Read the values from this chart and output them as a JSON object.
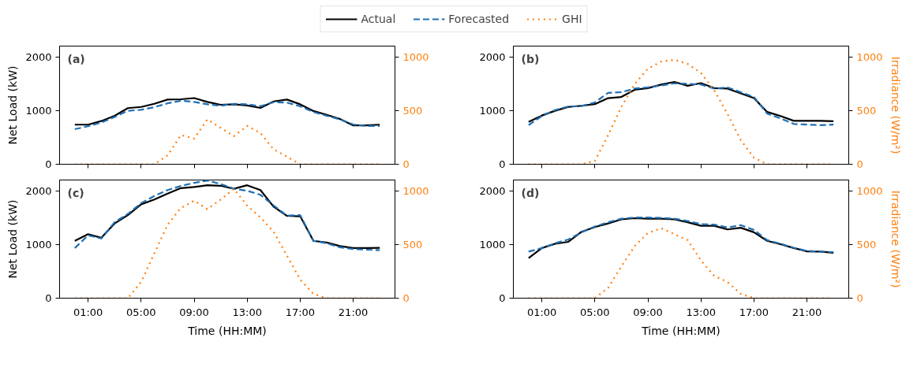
{
  "chart_data": [
    {
      "type": "line",
      "annotations": [
        "(a)"
      ],
      "ylabel": "Net Load (kW)",
      "legend": "top",
      "tick_labels": "y",
      "x": [
        0,
        1,
        2,
        3,
        4,
        5,
        6,
        7,
        8,
        9,
        10,
        11,
        12,
        13,
        14,
        15,
        16,
        17,
        18,
        19,
        20,
        21,
        22,
        23
      ],
      "xlim": [
        -1.15,
        24.15
      ],
      "xticks": [
        {
          "value": 1,
          "label": null
        },
        {
          "value": 5,
          "label": null
        },
        {
          "value": 9,
          "label": null
        },
        {
          "value": 13,
          "label": null
        },
        {
          "value": 17,
          "label": null
        },
        {
          "value": 21,
          "label": null
        }
      ],
      "ylim": [
        0,
        2200
      ],
      "yticks": [
        0,
        1000,
        2000
      ],
      "y2lim": [
        0,
        1100
      ],
      "y2ticks": [
        0,
        500,
        1000
      ],
      "grid": false,
      "series": [
        {
          "name": "Actual",
          "color": "#000000",
          "line_style": "solid",
          "values": [
            737,
            737,
            804,
            902,
            1045,
            1067,
            1125,
            1205,
            1210,
            1232,
            1161,
            1107,
            1116,
            1094,
            1049,
            1170,
            1205,
            1116,
            991,
            920,
            844,
            723,
            723,
            737
          ]
        },
        {
          "name": "Forecasted",
          "color": "#1f6fb4",
          "line_style": "dashed",
          "values": [
            652,
            710,
            777,
            880,
            996,
            1013,
            1063,
            1134,
            1183,
            1161,
            1116,
            1089,
            1125,
            1116,
            1080,
            1156,
            1147,
            1080,
            973,
            902,
            835,
            741,
            714,
            714
          ]
        },
        {
          "name": "GHI",
          "color": "#ff7f0e",
          "line_style": "dotted",
          "axis": "y2",
          "values": [
            0,
            0,
            0,
            0,
            0,
            0,
            0,
            83,
            272,
            239,
            417,
            339,
            261,
            357,
            290,
            138,
            71,
            0,
            0,
            0,
            0,
            0,
            0,
            0
          ]
        }
      ]
    },
    {
      "type": "line",
      "annotations": [
        "(b)"
      ],
      "y2label": "Irradiance (W/m²)",
      "tick_labels": "y",
      "x": [
        0,
        1,
        2,
        3,
        4,
        5,
        6,
        7,
        8,
        9,
        10,
        11,
        12,
        13,
        14,
        15,
        16,
        17,
        18,
        19,
        20,
        21,
        22,
        23
      ],
      "xlim": [
        -1.15,
        24.15
      ],
      "xticks": [
        {
          "value": 1,
          "label": null
        },
        {
          "value": 5,
          "label": null
        },
        {
          "value": 9,
          "label": null
        },
        {
          "value": 13,
          "label": null
        },
        {
          "value": 17,
          "label": null
        },
        {
          "value": 21,
          "label": null
        }
      ],
      "ylim": [
        0,
        2200
      ],
      "yticks": [
        0,
        1000,
        2000
      ],
      "y2lim": [
        0,
        1100
      ],
      "y2ticks": [
        0,
        500,
        1000
      ],
      "grid": false,
      "series": [
        {
          "color": "#000000",
          "line_style": "solid",
          "values": [
            787,
            907,
            996,
            1067,
            1089,
            1120,
            1231,
            1253,
            1387,
            1418,
            1484,
            1533,
            1462,
            1511,
            1418,
            1409,
            1320,
            1231,
            973,
            898,
            809,
            809,
            809,
            800
          ]
        },
        {
          "color": "#1f6fb4",
          "line_style": "dashed",
          "values": [
            729,
            898,
            1009,
            1076,
            1084,
            1151,
            1329,
            1342,
            1409,
            1431,
            1467,
            1507,
            1498,
            1484,
            1409,
            1431,
            1342,
            1253,
            942,
            853,
            751,
            738,
            729,
            738
          ]
        },
        {
          "color": "#ff7f0e",
          "line_style": "dotted",
          "axis": "y2",
          "values": [
            0,
            0,
            0,
            0,
            0,
            31,
            270,
            535,
            746,
            889,
            956,
            973,
            934,
            850,
            690,
            469,
            226,
            60,
            0,
            0,
            0,
            0,
            0,
            0
          ]
        }
      ]
    },
    {
      "type": "line",
      "annotations": [
        "(c)"
      ],
      "ylabel": "Net Load (kW)",
      "xlabel": "Time (HH:MM)",
      "x": [
        0,
        1,
        2,
        3,
        4,
        5,
        6,
        7,
        8,
        9,
        10,
        11,
        12,
        13,
        14,
        15,
        16,
        17,
        18,
        19,
        20,
        21,
        22,
        23
      ],
      "xlim": [
        -1.15,
        24.15
      ],
      "xticks": [
        {
          "value": 1,
          "label": "01:00"
        },
        {
          "value": 5,
          "label": "05:00"
        },
        {
          "value": 9,
          "label": "09:00"
        },
        {
          "value": 13,
          "label": "13:00"
        },
        {
          "value": 17,
          "label": "17:00"
        },
        {
          "value": 21,
          "label": "21:00"
        }
      ],
      "ylim": [
        0,
        2200
      ],
      "yticks": [
        0,
        1000,
        2000
      ],
      "y2lim": [
        0,
        1100
      ],
      "y2ticks": [
        0,
        500,
        1000
      ],
      "grid": false,
      "series": [
        {
          "color": "#000000",
          "line_style": "solid",
          "values": [
            1067,
            1191,
            1124,
            1391,
            1547,
            1747,
            1836,
            1947,
            2049,
            2071,
            2102,
            2093,
            2036,
            2102,
            2013,
            1702,
            1533,
            1524,
            1067,
            1036,
            969,
            933,
            933,
            938
          ]
        },
        {
          "color": "#1f6fb4",
          "line_style": "dashed",
          "values": [
            933,
            1169,
            1111,
            1413,
            1569,
            1769,
            1902,
            2013,
            2089,
            2147,
            2191,
            2124,
            2036,
            2000,
            1924,
            1724,
            1538,
            1547,
            1067,
            1022,
            947,
            916,
            902,
            893
          ]
        },
        {
          "color": "#ff7f0e",
          "line_style": "dotted",
          "axis": "y2",
          "values": [
            0,
            0,
            0,
            0,
            0,
            151,
            418,
            684,
            840,
            907,
            829,
            918,
            1018,
            862,
            751,
            618,
            396,
            173,
            40,
            0,
            0,
            0,
            0,
            0
          ]
        }
      ]
    },
    {
      "type": "line",
      "annotations": [
        "(d)"
      ],
      "xlabel": "Time (HH:MM)",
      "y2label": "Irradiance (W/m²)",
      "x": [
        0,
        1,
        2,
        3,
        4,
        5,
        6,
        7,
        8,
        9,
        10,
        11,
        12,
        13,
        14,
        15,
        16,
        17,
        18,
        19,
        20,
        21,
        22,
        23
      ],
      "xlim": [
        -1.15,
        24.15
      ],
      "xticks": [
        {
          "value": 1,
          "label": "01:00"
        },
        {
          "value": 5,
          "label": "05:00"
        },
        {
          "value": 9,
          "label": "09:00"
        },
        {
          "value": 13,
          "label": "13:00"
        },
        {
          "value": 17,
          "label": "17:00"
        },
        {
          "value": 21,
          "label": "21:00"
        }
      ],
      "ylim": [
        0,
        2200
      ],
      "yticks": [
        0,
        1000,
        2000
      ],
      "y2lim": [
        0,
        1100
      ],
      "y2ticks": [
        0,
        500,
        1000
      ],
      "grid": false,
      "series": [
        {
          "color": "#000000",
          "line_style": "solid",
          "values": [
            747,
            933,
            1013,
            1049,
            1236,
            1324,
            1391,
            1467,
            1489,
            1480,
            1480,
            1467,
            1413,
            1347,
            1347,
            1280,
            1311,
            1227,
            1067,
            1004,
            933,
            871,
            867,
            844
          ]
        },
        {
          "color": "#1f6fb4",
          "line_style": "dashed",
          "values": [
            867,
            933,
            1022,
            1093,
            1227,
            1333,
            1413,
            1480,
            1502,
            1502,
            1493,
            1480,
            1436,
            1378,
            1369,
            1316,
            1360,
            1271,
            1080,
            1013,
            938,
            880,
            867,
            858
          ]
        },
        {
          "color": "#ff7f0e",
          "line_style": "dotted",
          "axis": "y2",
          "values": [
            0,
            0,
            0,
            0,
            0,
            0,
            96,
            296,
            484,
            607,
            651,
            596,
            540,
            351,
            207,
            151,
            40,
            0,
            0,
            0,
            0,
            0,
            0,
            0
          ]
        }
      ]
    }
  ]
}
